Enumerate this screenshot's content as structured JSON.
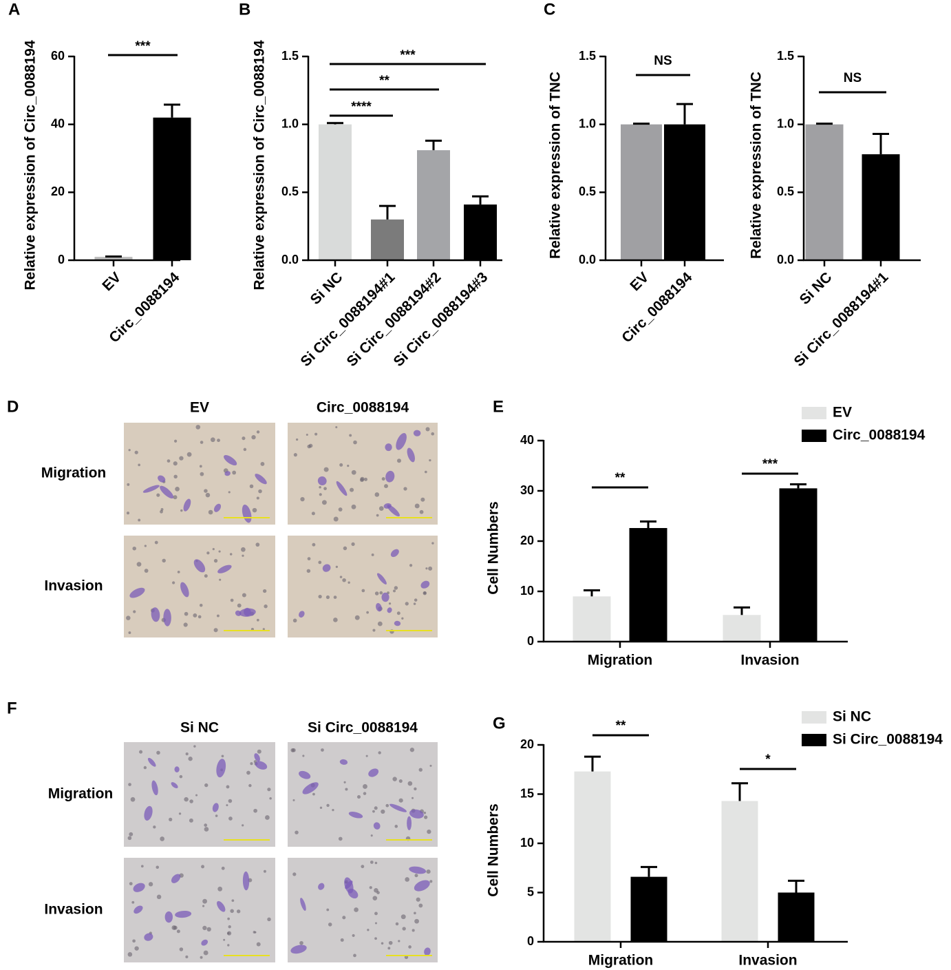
{
  "chart_data": [
    {
      "type": "bar",
      "panel_label": "A",
      "ylabel": "Relative expression of Circ_0088194",
      "categories": [
        "EV",
        "Circ_0088194"
      ],
      "values": [
        1,
        42
      ],
      "errors": [
        0.1,
        3.8
      ],
      "colors": [
        "#bdbdbd",
        "#000000"
      ],
      "ylim": [
        0,
        60
      ],
      "yticks": [
        0,
        20,
        40,
        60
      ],
      "annotations": [
        {
          "text": "***",
          "between": [
            "EV",
            "Circ_0088194"
          ]
        }
      ]
    },
    {
      "type": "bar",
      "panel_label": "B",
      "ylabel": "Relative expression of Circ_0088194",
      "categories": [
        "Si NC",
        "Si Circ_0088194#1",
        "Si Circ_0088194#2",
        "Si Circ_0088194#3"
      ],
      "values": [
        1.0,
        0.3,
        0.81,
        0.41
      ],
      "errors": [
        0.01,
        0.1,
        0.07,
        0.06
      ],
      "colors": [
        "#d9dbda",
        "#7b7b7b",
        "#a4a5a8",
        "#000000"
      ],
      "ylim": [
        0,
        1.5
      ],
      "yticks": [
        {
          "value": 0,
          "label": "0.0"
        },
        0.5,
        {
          "value": 1,
          "label": "1.0"
        },
        1.5
      ],
      "annotations": [
        {
          "text": "****",
          "between": [
            "Si NC",
            "Si Circ_0088194#1"
          ]
        },
        {
          "text": "**",
          "between": [
            "Si NC",
            "Si Circ_0088194#2"
          ]
        },
        {
          "text": "***",
          "between": [
            "Si NC",
            "Si Circ_0088194#3"
          ]
        }
      ]
    },
    {
      "type": "bar",
      "panel_label": "C",
      "ylabel": "Relative expression of TNC",
      "categories": [
        "EV",
        "Circ_0088194"
      ],
      "values": [
        1.0,
        1.0
      ],
      "errors": [
        0.005,
        0.15
      ],
      "colors": [
        "#a0a0a3",
        "#000000"
      ],
      "ylim": [
        0,
        1.5
      ],
      "yticks": [
        {
          "value": 0,
          "label": "0.0"
        },
        0.5,
        {
          "value": 1,
          "label": "1.0"
        },
        1.5
      ],
      "annotations": [
        {
          "text": "NS",
          "between": [
            "EV",
            "Circ_0088194"
          ]
        }
      ]
    },
    {
      "type": "bar",
      "ylabel": "Relative expression of TNC",
      "categories": [
        "Si NC",
        "Si Circ_0088194#1"
      ],
      "values": [
        1.0,
        0.78
      ],
      "errors": [
        0.005,
        0.15
      ],
      "colors": [
        "#a0a0a3",
        "#000000"
      ],
      "ylim": [
        0,
        1.5
      ],
      "yticks": [
        {
          "value": 0,
          "label": "0.0"
        },
        0.5,
        {
          "value": 1,
          "label": "1.0"
        },
        1.5
      ],
      "annotations": [
        {
          "text": "NS",
          "between": [
            "Si NC",
            "Si Circ_0088194#1"
          ]
        }
      ]
    },
    {
      "type": "grouped_bar",
      "panel_label": "E",
      "ylabel": "Cell Numbers",
      "categories": [
        "Migration",
        "Invasion"
      ],
      "series": [
        {
          "name": "EV",
          "color": "#e3e4e3",
          "values": [
            9,
            5.3
          ],
          "errors": [
            1.2,
            1.5
          ]
        },
        {
          "name": "Circ_0088194",
          "color": "#000000",
          "values": [
            22.6,
            30.5
          ],
          "errors": [
            1.3,
            0.8
          ]
        }
      ],
      "ylim": [
        0,
        40
      ],
      "yticks": [
        0,
        10,
        20,
        30,
        40
      ],
      "legend": "upper right",
      "annotations": [
        {
          "text": "**",
          "category": "Migration"
        },
        {
          "text": "***",
          "category": "Invasion"
        }
      ]
    },
    {
      "type": "grouped_bar",
      "panel_label": "G",
      "ylabel": "Cell Numbers",
      "categories": [
        "Migration",
        "Invasion"
      ],
      "series": [
        {
          "name": "Si NC",
          "color": "#e3e4e3",
          "values": [
            17.3,
            14.3
          ],
          "errors": [
            1.5,
            1.8
          ]
        },
        {
          "name": "Si Circ_0088194",
          "color": "#000000",
          "values": [
            6.6,
            5.0
          ],
          "errors": [
            1.0,
            1.2
          ]
        }
      ],
      "ylim": [
        0,
        20
      ],
      "yticks": [
        0,
        5,
        10,
        15,
        20
      ],
      "legend": "upper right",
      "annotations": [
        {
          "text": "**",
          "category": "Migration"
        },
        {
          "text": "*",
          "category": "Invasion"
        }
      ]
    }
  ],
  "image_panels": [
    {
      "panel_label": "D",
      "columns": [
        "EV",
        "Circ_0088194"
      ],
      "rows": [
        "Migration",
        "Invasion"
      ]
    },
    {
      "panel_label": "F",
      "columns": [
        "Si NC",
        "Si Circ_0088194"
      ],
      "rows": [
        "Migration",
        "Invasion"
      ]
    }
  ]
}
